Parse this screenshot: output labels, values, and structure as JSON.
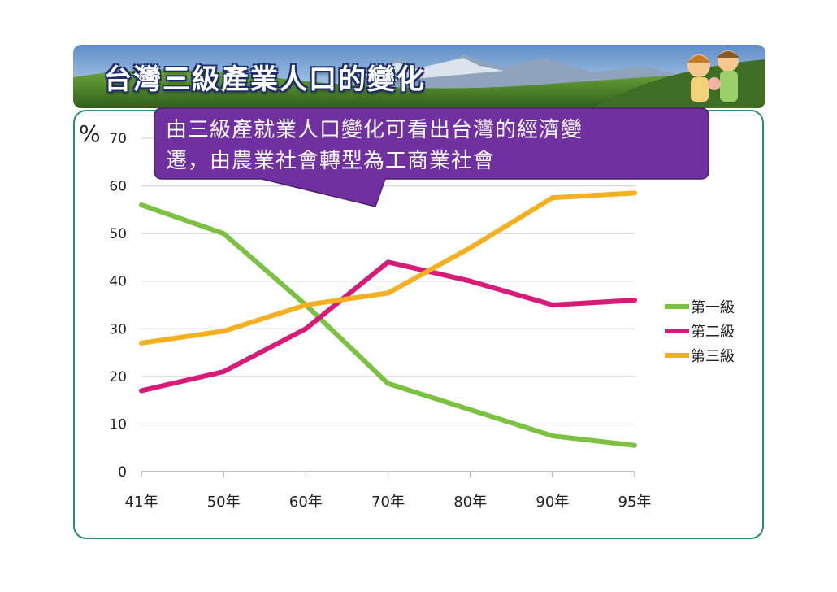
{
  "title": "台灣三級產業人口的變化",
  "callout": {
    "line1": "由三級產就業人口變化可看出台灣的經濟變",
    "line2": "遷，由農業社會轉型為工商業社會"
  },
  "colors": {
    "primary": "#7cc142",
    "secondary": "#d81b79",
    "tertiary": "#f5b021",
    "callout": "#7030a0",
    "border": "#2f8a74"
  },
  "chart_data": {
    "type": "line",
    "y_unit": "%",
    "categories": [
      "41年",
      "50年",
      "60年",
      "70年",
      "80年",
      "90年",
      "95年"
    ],
    "ylim": [
      0,
      70
    ],
    "yticks": [
      0,
      10,
      20,
      30,
      40,
      50,
      60,
      70
    ],
    "grid": true,
    "legend_position": "right",
    "series": [
      {
        "name": "第一級",
        "color": "#7cc142",
        "values": [
          56,
          50,
          35,
          18.5,
          13,
          7.5,
          5.5
        ]
      },
      {
        "name": "第二級",
        "color": "#d81b79",
        "values": [
          17,
          21,
          30,
          44,
          40,
          35,
          36
        ]
      },
      {
        "name": "第三級",
        "color": "#f5b021",
        "values": [
          27,
          29.5,
          35,
          37.5,
          47,
          57.5,
          58.5
        ]
      }
    ]
  }
}
